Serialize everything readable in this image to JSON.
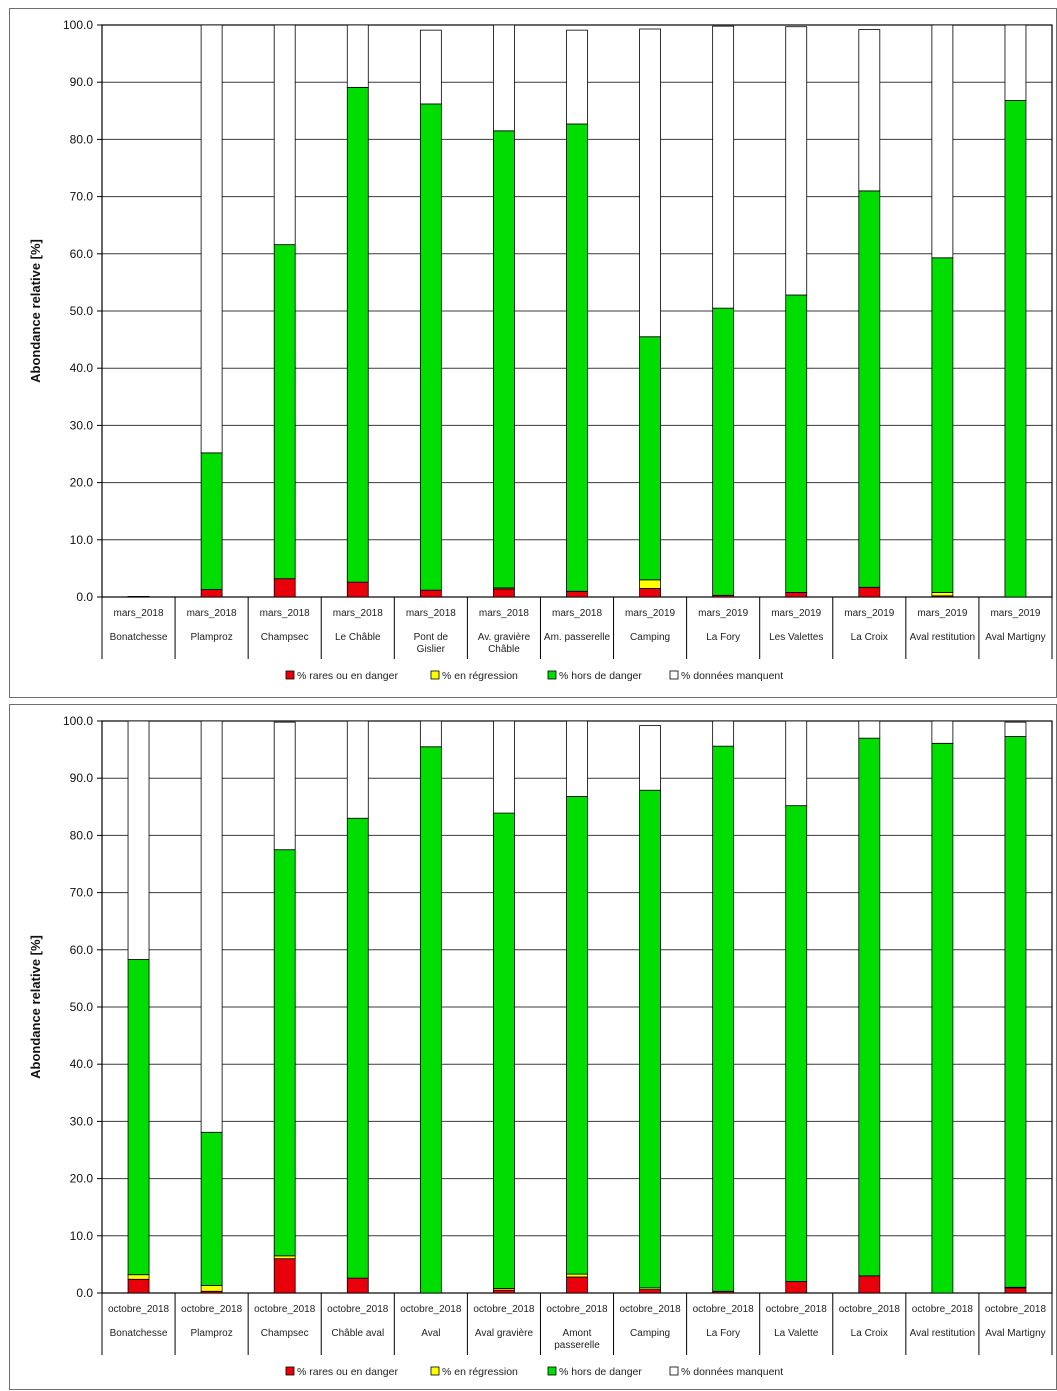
{
  "colors": {
    "rare": "#e8000b",
    "regression": "#ffff00",
    "hors": "#00dd00",
    "manquent": "#ffffff",
    "grid": "#3a3a3a",
    "frame": "#000000"
  },
  "chart_data": [
    {
      "type": "bar",
      "stacked": true,
      "ylabel": "Abondance relative [%]",
      "ylim": [
        0,
        100
      ],
      "yticks": [
        "0.0",
        "10.0",
        "20.0",
        "30.0",
        "40.0",
        "50.0",
        "60.0",
        "70.0",
        "80.0",
        "90.0",
        "100.0"
      ],
      "grid": true,
      "legend_position": "bottom",
      "categories": [
        {
          "date": "mars_2018",
          "site": [
            "Bonatchesse"
          ]
        },
        {
          "date": "mars_2018",
          "site": [
            "Plamproz"
          ]
        },
        {
          "date": "mars_2018",
          "site": [
            "Champsec"
          ]
        },
        {
          "date": "mars_2018",
          "site": [
            "Le Châble"
          ]
        },
        {
          "date": "mars_2018",
          "site": [
            "Pont de",
            "Gislier"
          ]
        },
        {
          "date": "mars_2018",
          "site": [
            "Av. gravière",
            "Châble"
          ]
        },
        {
          "date": "mars_2018",
          "site": [
            "Am. passerelle"
          ]
        },
        {
          "date": "mars_2019",
          "site": [
            "Camping"
          ]
        },
        {
          "date": "mars_2019",
          "site": [
            "La Fory"
          ]
        },
        {
          "date": "mars_2019",
          "site": [
            "Les Valettes"
          ]
        },
        {
          "date": "mars_2019",
          "site": [
            "La Croix"
          ]
        },
        {
          "date": "mars_2019",
          "site": [
            "Aval restitution"
          ]
        },
        {
          "date": "mars_2019",
          "site": [
            "Aval Martigny"
          ]
        }
      ],
      "series": [
        {
          "name": "% rares ou en danger",
          "values": [
            0.1,
            1.3,
            3.2,
            2.6,
            1.2,
            1.4,
            1.0,
            1.5,
            0.3,
            0.8,
            1.7,
            0.2,
            0.0
          ]
        },
        {
          "name": "% en régression",
          "values": [
            0.0,
            0.0,
            0.0,
            0.0,
            0.0,
            0.2,
            0.0,
            1.5,
            0.0,
            0.0,
            0.0,
            0.6,
            0.0
          ]
        },
        {
          "name": "% hors de danger",
          "values": [
            0.0,
            23.9,
            58.4,
            86.5,
            85.0,
            79.9,
            81.7,
            42.5,
            50.2,
            52.0,
            69.3,
            58.5,
            86.8
          ]
        },
        {
          "name": "% données manquent",
          "values": [
            0.0,
            74.8,
            38.4,
            10.9,
            12.9,
            18.5,
            16.4,
            53.8,
            49.3,
            46.9,
            28.2,
            40.7,
            13.2
          ]
        }
      ]
    },
    {
      "type": "bar",
      "stacked": true,
      "ylabel": "Abondance relative [%]",
      "ylim": [
        0,
        100
      ],
      "yticks": [
        "0.0",
        "10.0",
        "20.0",
        "30.0",
        "40.0",
        "50.0",
        "60.0",
        "70.0",
        "80.0",
        "90.0",
        "100.0"
      ],
      "grid": true,
      "legend_position": "bottom",
      "categories": [
        {
          "date": "octobre_2018",
          "site": [
            "Bonatchesse"
          ]
        },
        {
          "date": "octobre_2018",
          "site": [
            "Plamproz"
          ]
        },
        {
          "date": "octobre_2018",
          "site": [
            "Champsec"
          ]
        },
        {
          "date": "octobre_2018",
          "site": [
            "Châble aval"
          ]
        },
        {
          "date": "octobre_2018",
          "site": [
            "Aval"
          ]
        },
        {
          "date": "octobre_2018",
          "site": [
            "Aval gravière"
          ]
        },
        {
          "date": "octobre_2018",
          "site": [
            "Amont",
            "passerelle"
          ]
        },
        {
          "date": "octobre_2018",
          "site": [
            "Camping"
          ]
        },
        {
          "date": "octobre_2018",
          "site": [
            "La Fory"
          ]
        },
        {
          "date": "octobre_2018",
          "site": [
            "La Valette"
          ]
        },
        {
          "date": "octobre_2018",
          "site": [
            "La Croix"
          ]
        },
        {
          "date": "octobre_2018",
          "site": [
            "Aval restitution"
          ]
        },
        {
          "date": "octobre_2018",
          "site": [
            "Aval Martigny"
          ]
        }
      ],
      "series": [
        {
          "name": "% rares ou en danger",
          "values": [
            2.4,
            0.3,
            6.0,
            2.6,
            0.0,
            0.5,
            2.8,
            0.6,
            0.3,
            2.0,
            3.0,
            0.0,
            0.9
          ]
        },
        {
          "name": "% en régression",
          "values": [
            0.8,
            1.0,
            0.5,
            0.0,
            0.0,
            0.3,
            0.5,
            0.3,
            0.0,
            0.0,
            0.0,
            0.0,
            0.1
          ]
        },
        {
          "name": "% hors de danger",
          "values": [
            55.1,
            26.8,
            71.0,
            80.4,
            95.5,
            83.1,
            83.5,
            87.0,
            95.3,
            83.2,
            94.0,
            96.1,
            96.3
          ]
        },
        {
          "name": "% données manquent",
          "values": [
            41.7,
            71.9,
            22.3,
            17.0,
            4.5,
            16.1,
            13.2,
            11.3,
            4.4,
            14.8,
            3.0,
            3.9,
            2.5
          ]
        }
      ]
    }
  ]
}
